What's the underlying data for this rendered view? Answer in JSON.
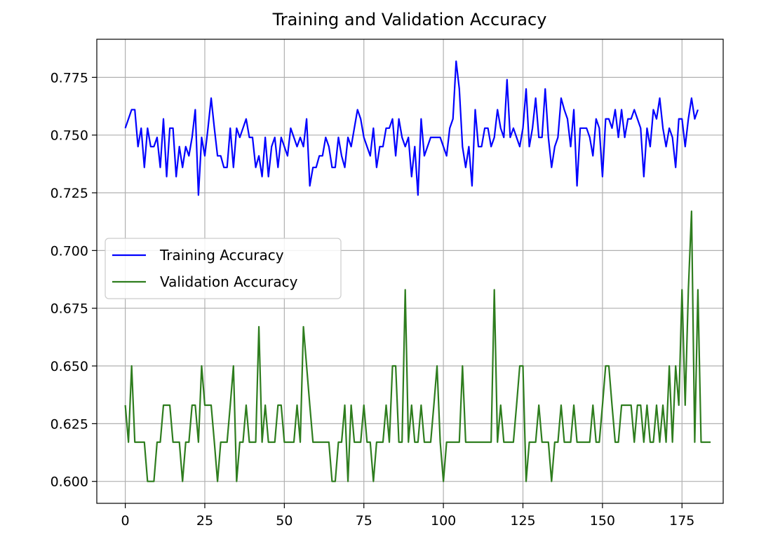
{
  "chart_data": {
    "type": "line",
    "title": "Training and Validation Accuracy",
    "xlabel": "",
    "ylabel": "",
    "xlim": [
      -8.95,
      187.95
    ],
    "ylim": [
      0.5905,
      0.7915
    ],
    "x_ticks": [
      0,
      25,
      50,
      75,
      100,
      125,
      150,
      175
    ],
    "y_ticks": [
      0.6,
      0.625,
      0.65,
      0.675,
      0.7,
      0.725,
      0.75,
      0.775
    ],
    "y_tick_labels": [
      "0.600",
      "0.625",
      "0.650",
      "0.675",
      "0.700",
      "0.725",
      "0.750",
      "0.775"
    ],
    "grid": true,
    "legend_position": "center-left",
    "series": [
      {
        "name": "Training Accuracy",
        "color": "#0000ff",
        "values": [
          0.753,
          0.757,
          0.761,
          0.761,
          0.745,
          0.753,
          0.736,
          0.753,
          0.745,
          0.745,
          0.749,
          0.736,
          0.757,
          0.732,
          0.753,
          0.753,
          0.732,
          0.745,
          0.736,
          0.745,
          0.741,
          0.749,
          0.761,
          0.724,
          0.749,
          0.741,
          0.753,
          0.766,
          0.753,
          0.741,
          0.741,
          0.736,
          0.736,
          0.753,
          0.736,
          0.753,
          0.749,
          0.753,
          0.757,
          0.749,
          0.749,
          0.736,
          0.741,
          0.732,
          0.749,
          0.732,
          0.745,
          0.749,
          0.736,
          0.749,
          0.745,
          0.741,
          0.753,
          0.749,
          0.745,
          0.749,
          0.745,
          0.757,
          0.728,
          0.736,
          0.736,
          0.741,
          0.741,
          0.749,
          0.745,
          0.736,
          0.736,
          0.749,
          0.741,
          0.736,
          0.749,
          0.745,
          0.753,
          0.761,
          0.757,
          0.749,
          0.745,
          0.741,
          0.753,
          0.736,
          0.745,
          0.745,
          0.753,
          0.753,
          0.757,
          0.741,
          0.757,
          0.749,
          0.745,
          0.749,
          0.732,
          0.745,
          0.724,
          0.757,
          0.741,
          0.745,
          0.749,
          0.749,
          0.749,
          0.749,
          0.745,
          0.741,
          0.753,
          0.757,
          0.782,
          0.77,
          0.745,
          0.736,
          0.745,
          0.728,
          0.761,
          0.745,
          0.745,
          0.753,
          0.753,
          0.745,
          0.749,
          0.761,
          0.753,
          0.749,
          0.774,
          0.749,
          0.753,
          0.749,
          0.745,
          0.753,
          0.77,
          0.745,
          0.753,
          0.766,
          0.749,
          0.749,
          0.77,
          0.749,
          0.736,
          0.745,
          0.749,
          0.766,
          0.761,
          0.757,
          0.745,
          0.761,
          0.728,
          0.753,
          0.753,
          0.753,
          0.749,
          0.741,
          0.757,
          0.753,
          0.732,
          0.757,
          0.757,
          0.753,
          0.761,
          0.749,
          0.761,
          0.749,
          0.757,
          0.757,
          0.761,
          0.757,
          0.753,
          0.732,
          0.753,
          0.745,
          0.761,
          0.757,
          0.766,
          0.753,
          0.745,
          0.753,
          0.749,
          0.736,
          0.757,
          0.757,
          0.745,
          0.757,
          0.766,
          0.757,
          0.761
        ]
      },
      {
        "name": "Validation Accuracy",
        "color": "#2e7d1e",
        "values": [
          0.633,
          0.617,
          0.65,
          0.617,
          0.617,
          0.617,
          0.617,
          0.6,
          0.6,
          0.6,
          0.617,
          0.617,
          0.633,
          0.633,
          0.633,
          0.617,
          0.617,
          0.617,
          0.6,
          0.617,
          0.617,
          0.633,
          0.633,
          0.617,
          0.65,
          0.633,
          0.633,
          0.633,
          0.617,
          0.6,
          0.617,
          0.617,
          0.617,
          0.633,
          0.65,
          0.6,
          0.617,
          0.617,
          0.633,
          0.617,
          0.617,
          0.617,
          0.667,
          0.617,
          0.633,
          0.617,
          0.617,
          0.617,
          0.633,
          0.633,
          0.617,
          0.617,
          0.617,
          0.617,
          0.633,
          0.617,
          0.667,
          0.65,
          0.633,
          0.617,
          0.617,
          0.617,
          0.617,
          0.617,
          0.617,
          0.6,
          0.6,
          0.617,
          0.617,
          0.633,
          0.6,
          0.633,
          0.617,
          0.617,
          0.617,
          0.633,
          0.617,
          0.617,
          0.6,
          0.617,
          0.617,
          0.617,
          0.633,
          0.617,
          0.65,
          0.65,
          0.617,
          0.617,
          0.683,
          0.617,
          0.633,
          0.617,
          0.617,
          0.633,
          0.617,
          0.617,
          0.617,
          0.633,
          0.65,
          0.617,
          0.6,
          0.617,
          0.617,
          0.617,
          0.617,
          0.617,
          0.65,
          0.617,
          0.617,
          0.617,
          0.617,
          0.617,
          0.617,
          0.617,
          0.617,
          0.617,
          0.683,
          0.617,
          0.633,
          0.617,
          0.617,
          0.617,
          0.617,
          0.633,
          0.65,
          0.65,
          0.6,
          0.617,
          0.617,
          0.617,
          0.633,
          0.617,
          0.617,
          0.617,
          0.6,
          0.617,
          0.617,
          0.633,
          0.617,
          0.617,
          0.617,
          0.633,
          0.617,
          0.617,
          0.617,
          0.617,
          0.617,
          0.633,
          0.617,
          0.617,
          0.633,
          0.65,
          0.65,
          0.633,
          0.617,
          0.617,
          0.633,
          0.633,
          0.633,
          0.633,
          0.617,
          0.633,
          0.633,
          0.617,
          0.633,
          0.617,
          0.617,
          0.633,
          0.617,
          0.633,
          0.617,
          0.65,
          0.617,
          0.65,
          0.633,
          0.683,
          0.633,
          0.683,
          0.717,
          0.617,
          0.683,
          0.617,
          0.617,
          0.617,
          0.617
        ]
      }
    ]
  }
}
